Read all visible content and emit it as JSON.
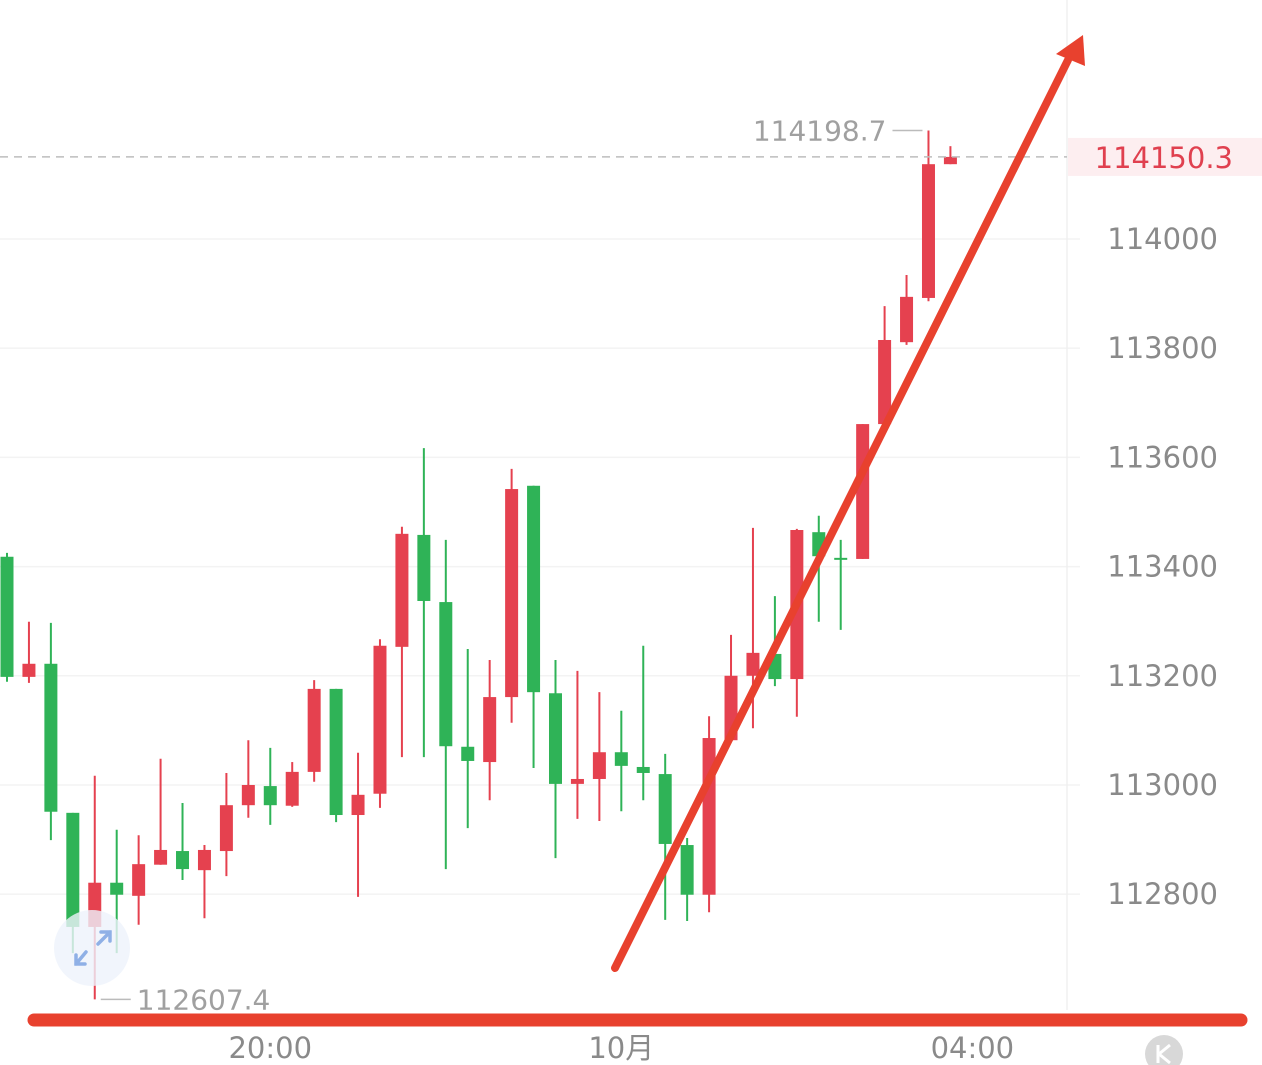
{
  "chart_data": {
    "type": "candlestick",
    "interval_minutes": 15,
    "up_color": "#e5414f",
    "down_color": "#2fb357",
    "annotation_color": "#e8412e",
    "ylim": [
      112560,
      114550
    ],
    "y_ticks": [
      114000,
      113800,
      113600,
      113400,
      113200,
      113000,
      112800
    ],
    "y_tick_labels": [
      "114000",
      "113800",
      "113600",
      "113400",
      "113200",
      "113000",
      "112800"
    ],
    "x_tick_labels": [
      {
        "label": "20:00",
        "time": "20:00"
      },
      {
        "label": "10月",
        "time": "00:00"
      },
      {
        "label": "04:00",
        "time": "04:00"
      }
    ],
    "current_price": 114150.3,
    "current_price_label": "114150.3",
    "max_label": "114198.7",
    "min_label": "112607.4",
    "columns": [
      "time",
      "open",
      "high",
      "low",
      "close"
    ],
    "candles": [
      [
        "17:00",
        113418,
        113425,
        113189,
        113198
      ],
      [
        "17:15",
        113198,
        113299,
        113187,
        113222
      ],
      [
        "17:30",
        113222,
        113297,
        112899,
        112951
      ],
      [
        "17:45",
        112949,
        112949,
        112692,
        112740
      ],
      [
        "18:00",
        112740,
        113017,
        112607.4,
        112821
      ],
      [
        "18:15",
        112821,
        112918,
        112692,
        112799
      ],
      [
        "18:30",
        112797,
        112908,
        112744,
        112855
      ],
      [
        "18:45",
        112854,
        113048,
        112854,
        112881
      ],
      [
        "19:00",
        112879,
        112967,
        112826,
        112846
      ],
      [
        "19:15",
        112844,
        112890,
        112756,
        112881
      ],
      [
        "19:30",
        112879,
        113022,
        112833,
        112963
      ],
      [
        "19:45",
        112963,
        113082,
        112940,
        113000
      ],
      [
        "20:00",
        112998,
        113068,
        112927,
        112963
      ],
      [
        "20:15",
        112962,
        113042,
        112960,
        113024
      ],
      [
        "20:30",
        113024,
        113192,
        113006,
        113176
      ],
      [
        "20:45",
        113176,
        113176,
        112932,
        112945
      ],
      [
        "21:00",
        112945,
        113059,
        112795,
        112982
      ],
      [
        "21:15",
        112984,
        113267,
        112958,
        113255
      ],
      [
        "21:30",
        113253,
        113473,
        113051,
        113460
      ],
      [
        "21:45",
        113458,
        113617,
        113051,
        113337
      ],
      [
        "22:00",
        113335,
        113449,
        112846,
        113071
      ],
      [
        "22:15",
        113070,
        113249,
        112921,
        113044
      ],
      [
        "22:30",
        113042,
        113229,
        112972,
        113161
      ],
      [
        "22:45",
        113161,
        113579,
        113114,
        113542
      ],
      [
        "23:00",
        113548,
        113548,
        113031,
        113170
      ],
      [
        "23:15",
        113168,
        113229,
        112866,
        113002
      ],
      [
        "23:30",
        113002,
        113209,
        112938,
        113011
      ],
      [
        "23:45",
        113011,
        113170,
        112934,
        113060
      ],
      [
        "00:00",
        113060,
        113136,
        112952,
        113035
      ],
      [
        "00:15",
        113033,
        113255,
        112972,
        113022
      ],
      [
        "00:30",
        113020,
        113057,
        112753,
        112892
      ],
      [
        "00:45",
        112890,
        112903,
        112751,
        112799
      ],
      [
        "01:00",
        112799,
        113126,
        112767,
        113086
      ],
      [
        "01:15",
        113082,
        113275,
        113082,
        113200
      ],
      [
        "01:30",
        113200,
        113471,
        113104,
        113242
      ],
      [
        "01:45",
        113240,
        113346,
        113181,
        113194
      ],
      [
        "02:00",
        113194,
        113469,
        113125,
        113467
      ],
      [
        "02:15",
        113463,
        113493,
        113299,
        113419
      ],
      [
        "02:30",
        113416,
        113449,
        113284,
        113414
      ],
      [
        "02:45",
        113414,
        113661,
        113414,
        113661
      ],
      [
        "03:00",
        113661,
        113877,
        113661,
        113815
      ],
      [
        "03:15",
        113811,
        113934,
        113806,
        113894
      ],
      [
        "03:30",
        113892,
        114198.7,
        113886,
        114137
      ],
      [
        "03:45",
        114137,
        114170,
        114137,
        114150.3
      ]
    ],
    "annotations": [
      {
        "type": "horizontal-line",
        "price": 112550
      },
      {
        "type": "arrow",
        "direction": "up-right"
      }
    ],
    "grid": true
  }
}
